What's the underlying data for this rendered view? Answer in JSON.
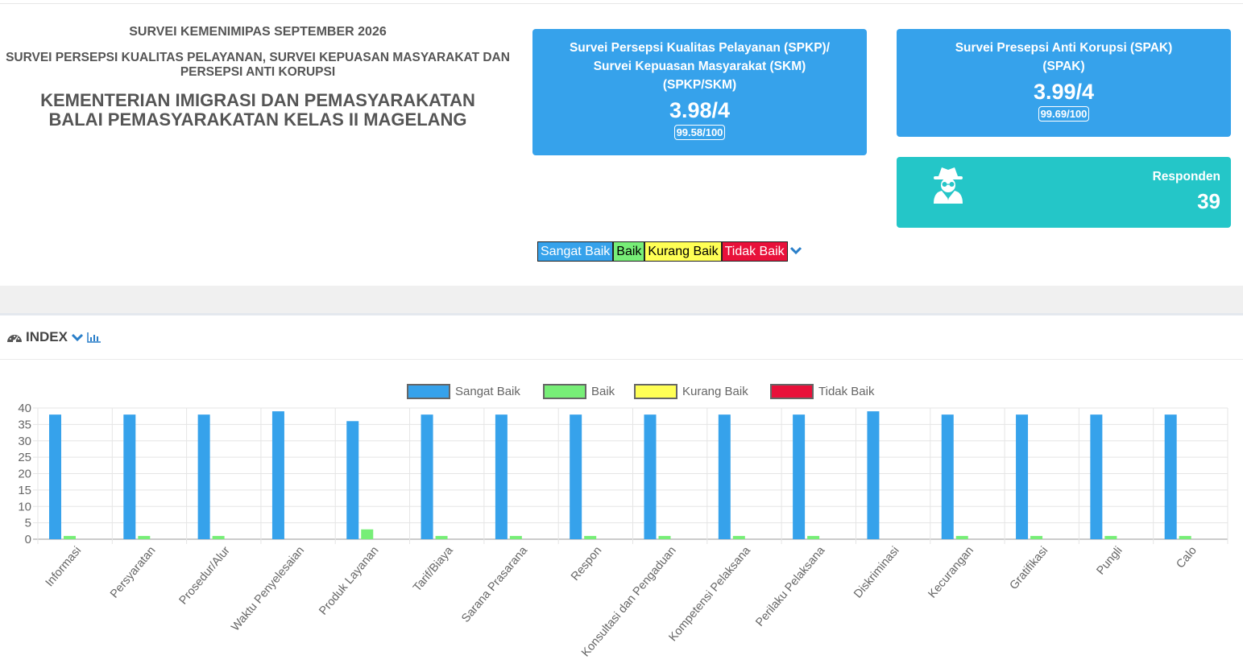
{
  "header": {
    "survey_period": "SURVEI KEMENIMIPAS SEPTEMBER 2026",
    "survey_type": "SURVEI PERSEPSI KUALITAS PELAYANAN, SURVEI KEPUASAN MASYARAKAT DAN PERSEPSI ANTI KORUPSI",
    "ministry": "KEMENTERIAN IMIGRASI DAN PEMASYARAKATAN",
    "unit": "BALAI PEMASYARAKATAN KELAS II MAGELANG"
  },
  "cards": {
    "spkp": {
      "title_line1": "Survei Persepsi Kualitas Pelayanan (SPKP)/",
      "title_line2": "Survei Kepuasan Masyarakat (SKM)",
      "abbr": "(SPKP/SKM)",
      "score": "3.98/4",
      "percent": "99.58/100"
    },
    "spak": {
      "title_line1": "Survei Presepsi Anti Korupsi (SPAK)",
      "abbr": "(SPAK)",
      "score": "3.99/4",
      "percent": "99.69/100"
    },
    "responden": {
      "label": "Responden",
      "value": "39",
      "icon": "spy-icon"
    }
  },
  "legend_filter": {
    "sangat_baik": "Sangat Baik",
    "baik": "Baik",
    "kurang_baik": "Kurang Baik",
    "tidak_baik": "Tidak Baik"
  },
  "index_section": {
    "title": "INDEX",
    "icons": [
      "dashboard-icon",
      "chevron-down-icon",
      "bar-chart-icon"
    ]
  },
  "colors": {
    "card_blue": "#36a2eb",
    "card_teal": "#24c6c8",
    "sangat_baik": "#36a2eb",
    "baik": "#77ee77",
    "kurang_baik": "#ffff55",
    "tidak_baik": "#e8113a"
  },
  "chart_data": {
    "type": "bar",
    "categories": [
      "Informasi",
      "Persyaratan",
      "Prosedur/Alur",
      "Waktu Penyelesaian",
      "Produk Layanan",
      "Tarif/Biaya",
      "Sarana Prasarana",
      "Respon",
      "Konsultasi dan Pengaduan",
      "Kompetensi Pelaksana",
      "Perilaku Pelaksana",
      "Diskriminasi",
      "Kecurangan",
      "Gratifikasi",
      "Pungli",
      "Calo"
    ],
    "series": [
      {
        "name": "Sangat Baik",
        "color": "#36a2eb",
        "values": [
          38,
          38,
          38,
          39,
          36,
          38,
          38,
          38,
          38,
          38,
          38,
          39,
          38,
          38,
          38,
          38
        ]
      },
      {
        "name": "Baik",
        "color": "#77ee77",
        "values": [
          1,
          1,
          1,
          0,
          3,
          1,
          1,
          1,
          1,
          1,
          1,
          0,
          1,
          1,
          1,
          1
        ]
      },
      {
        "name": "Kurang Baik",
        "color": "#ffff55",
        "values": [
          0,
          0,
          0,
          0,
          0,
          0,
          0,
          0,
          0,
          0,
          0,
          0,
          0,
          0,
          0,
          0
        ]
      },
      {
        "name": "Tidak Baik",
        "color": "#e8113a",
        "values": [
          0,
          0,
          0,
          0,
          0,
          0,
          0,
          0,
          0,
          0,
          0,
          0,
          0,
          0,
          0,
          0
        ]
      }
    ],
    "yticks": [
      0,
      5,
      10,
      15,
      20,
      25,
      30,
      35,
      40
    ],
    "ylim": [
      0,
      40
    ],
    "grid": true,
    "legend_position": "top"
  }
}
